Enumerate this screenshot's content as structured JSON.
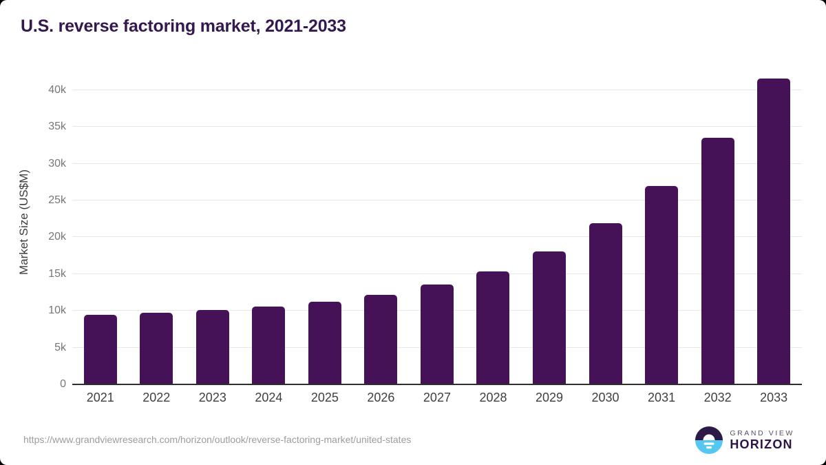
{
  "title": "U.S. reverse factoring market, 2021-2033",
  "chart_data": {
    "type": "bar",
    "title": "U.S. reverse factoring market, 2021-2033",
    "xlabel": "",
    "ylabel": "Market Size (US$M)",
    "categories": [
      "2021",
      "2022",
      "2023",
      "2024",
      "2025",
      "2026",
      "2027",
      "2028",
      "2029",
      "2030",
      "2031",
      "2032",
      "2033"
    ],
    "values": [
      9440,
      9760,
      10130,
      10600,
      11250,
      12200,
      13550,
      15400,
      18100,
      21950,
      27000,
      33500,
      41610
    ],
    "ylim": [
      0,
      44000
    ],
    "yticks": [
      {
        "value": 0,
        "label": "0"
      },
      {
        "value": 5000,
        "label": "5k"
      },
      {
        "value": 10000,
        "label": "10k"
      },
      {
        "value": 15000,
        "label": "15k"
      },
      {
        "value": 20000,
        "label": "20k"
      },
      {
        "value": 25000,
        "label": "25k"
      },
      {
        "value": 30000,
        "label": "30k"
      },
      {
        "value": 35000,
        "label": "35k"
      },
      {
        "value": 40000,
        "label": "40k"
      }
    ],
    "grid": "horizontal",
    "legend": "none",
    "bar_color": "#461257"
  },
  "colors": {
    "title": "#33194f",
    "bar": "#461257",
    "gridline": "#e8e8eb",
    "axis_line": "#2e2e2e",
    "ytick_label": "#767676",
    "xtick_label": "#3f3f3f",
    "y_axis_title": "#3c3c3c",
    "source_url": "#9c9c9c",
    "logo_dark_purple": "#2d1a47",
    "logo_sky_blue": "#55c8f2",
    "logo_horizon_text": "#2c1445",
    "logo_grandview_text": "#56505f"
  },
  "footer": {
    "source_url": "https://www.grandviewresearch.com/horizon/outlook/reverse-factoring-market/united-states",
    "logo": {
      "brand_top": "GRAND VIEW",
      "brand_bottom": "HORIZON"
    }
  }
}
